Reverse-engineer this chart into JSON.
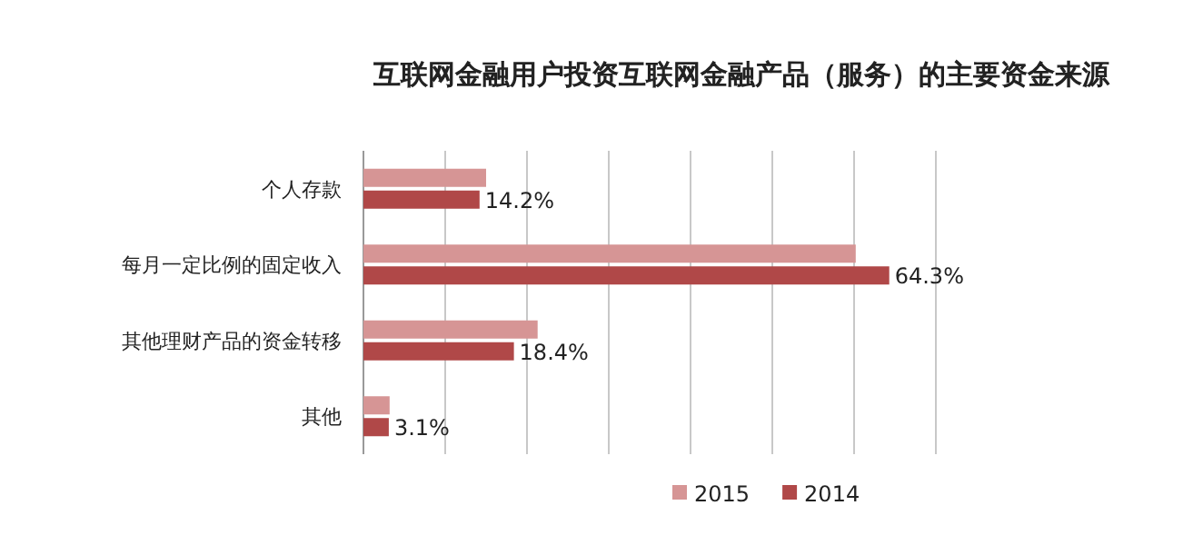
{
  "chart_data": {
    "type": "bar",
    "orientation": "horizontal",
    "title": "互联网金融用户投资互联网金融产品（服务）的主要资金来源",
    "categories": [
      "个人存款",
      "每月一定比例的固定收入",
      "其他理财产品的资金转移",
      "其他"
    ],
    "series": [
      {
        "name": "2015",
        "color": "#d69595",
        "values": [
          15,
          60.2,
          21.3,
          3.2
        ]
      },
      {
        "name": "2014",
        "color": "#b04848",
        "values": [
          14.2,
          64.3,
          18.4,
          3.1
        ],
        "value_labels": [
          "14.2%",
          "64.3%",
          "18.4%",
          "3.1%"
        ]
      }
    ],
    "xlim": [
      0,
      70
    ],
    "xticks": [
      {
        "value": 0,
        "label": null
      },
      {
        "value": 10,
        "label": null
      },
      {
        "value": 20,
        "label": null
      },
      {
        "value": 30,
        "label": null
      },
      {
        "value": 40,
        "label": null
      },
      {
        "value": 50,
        "label": null
      },
      {
        "value": 60,
        "label": null
      },
      {
        "value": 70,
        "label": null
      }
    ],
    "grid": "x",
    "legend": "bottom",
    "tick_labels": "y"
  }
}
